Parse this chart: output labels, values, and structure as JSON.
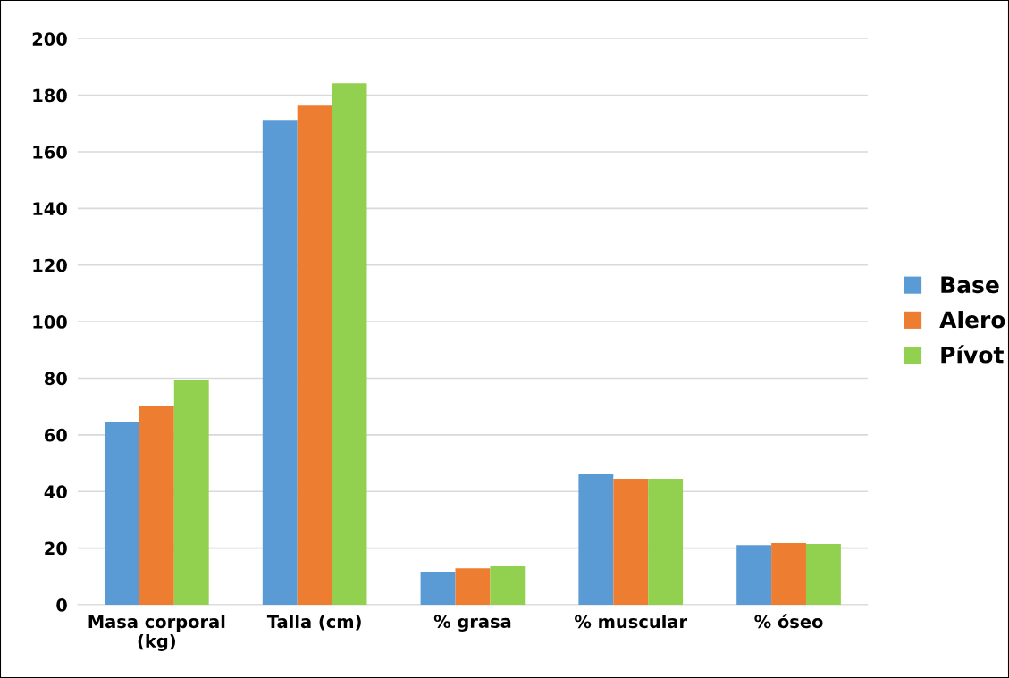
{
  "chart_data": {
    "type": "bar",
    "categories": [
      "Masa corporal\n(kg)",
      "Talla (cm)",
      "% grasa",
      "% muscular",
      "% óseo"
    ],
    "series": [
      {
        "name": "Base",
        "color": "#5b9bd5",
        "values": [
          64.7,
          171.3,
          11.7,
          46.1,
          21.1
        ]
      },
      {
        "name": "Alero",
        "color": "#ed7d31",
        "values": [
          70.3,
          176.3,
          12.9,
          44.5,
          21.8
        ]
      },
      {
        "name": "Pívot",
        "color": "#92d050",
        "values": [
          79.5,
          184.2,
          13.6,
          44.5,
          21.5
        ]
      }
    ],
    "ylim": [
      0,
      200
    ],
    "yticks": [
      0,
      20,
      40,
      60,
      80,
      100,
      120,
      140,
      160,
      180,
      200
    ],
    "grid": "y",
    "legend": "right"
  }
}
